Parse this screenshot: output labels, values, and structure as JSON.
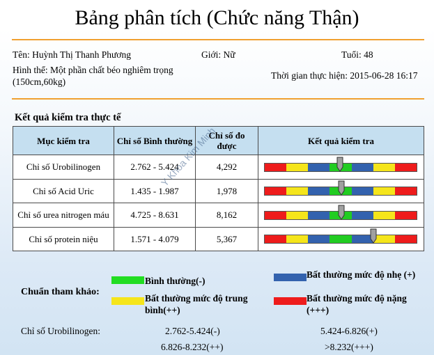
{
  "title": "Bảng phân tích (Chức năng Thận)",
  "patient": {
    "name": "Tên: Huỳnh Thị Thanh Phương",
    "gender": "Giới: Nữ",
    "age": "Tuổi: 48",
    "body_type_line1": "Hình thể: Một phần chất béo nghiêm trọng",
    "body_type_line2": "(150cm,60kg)",
    "exec_time": "Thời gian thực hiện: 2015-06-28 16:17"
  },
  "section_title": "Kết quả kiểm tra thực tế",
  "table": {
    "headers": [
      "Mục kiểm tra",
      "Chỉ số Bình thường",
      "Chỉ số đo được",
      "Kết quả kiểm tra"
    ],
    "rows": [
      {
        "item": "Chỉ số Urobilinogen",
        "normal": "2.762 - 5.424",
        "measured": "4,292",
        "level": 0.5
      },
      {
        "item": "Chỉ số Acid Uric",
        "normal": "1.435 - 1.987",
        "measured": "1,978",
        "level": 0.51
      },
      {
        "item": "Chỉ số urea nitrogen máu",
        "normal": "4.725 - 8.631",
        "measured": "8,162",
        "level": 0.51
      },
      {
        "item": "Chỉ số protein niệu",
        "normal": "1.571 - 4.079",
        "measured": "5,367",
        "level": 0.72
      }
    ],
    "bar_colors": [
      "#ee1c1c",
      "#f5e51b",
      "#3362ae",
      "#22cc22",
      "#3362ae",
      "#f5e51b",
      "#ee1c1c"
    ]
  },
  "watermark": "Y Khoa Kim Minh",
  "legend": {
    "label": "Chuẩn tham khảo:",
    "items": [
      {
        "text": "Bình thường(-)",
        "color": "#22dd22"
      },
      {
        "text": "Bất thường mức độ nhẹ (+)",
        "color": "#3362ae"
      },
      {
        "text": "Bất thường mức độ trung bình(++)",
        "color": "#f5e51b"
      },
      {
        "text": "Bất thường mức độ nặng (+++)",
        "color": "#ee1c1c"
      }
    ]
  },
  "reference": {
    "label": "Chỉ số Urobilinogen:",
    "ranges": [
      "2.762-5.424(-)",
      "5.424-6.826(+)",
      "6.826-8.232(++)",
      ">8.232(+++)"
    ]
  }
}
